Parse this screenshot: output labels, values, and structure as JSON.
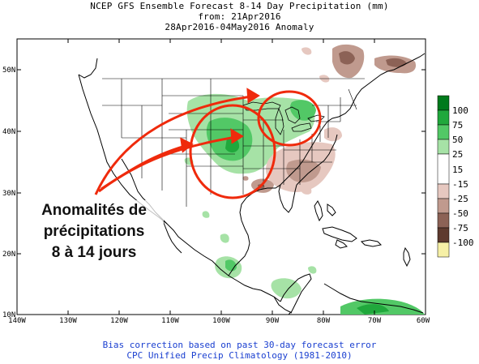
{
  "title": {
    "line1": "NCEP GFS Ensemble Forecast 8-14 Day Precipitation (mm)",
    "line2": "from: 21Apr2016",
    "line3": "28Apr2016-04May2016 Anomaly"
  },
  "axes": {
    "lat_labels": [
      "50N",
      "40N",
      "30N",
      "20N",
      "10N"
    ],
    "lon_labels": [
      "140W",
      "130W",
      "120W",
      "110W",
      "100W",
      "90W",
      "80W",
      "70W",
      "60W"
    ]
  },
  "legend": {
    "levels": [
      "100",
      "75",
      "50",
      "25",
      "15",
      "-15",
      "-25",
      "-50",
      "-75",
      "-100"
    ],
    "colors": [
      "#007a1c",
      "#20a83c",
      "#52c866",
      "#a6e2a6",
      "#ffffff",
      "#e6c8c0",
      "#c09a8e",
      "#8c6256",
      "#5e3a2e",
      "#f6f0a6"
    ]
  },
  "annotation": {
    "line1": "Anomalités de",
    "line2": "précipitations",
    "line3": "8 à 14 jours",
    "color": "#ef2a0c"
  },
  "footer": {
    "line1": "Bias correction based on past 30-day forecast error",
    "line2": "CPC Unified Precip Climatology (1981-2010)"
  },
  "colors": {
    "wet": "#a6e2a6",
    "wet_strong": "#52c866",
    "wet_max": "#20a83c",
    "dry": "#e6c8c0",
    "dry_strong": "#c09a8e",
    "dry_max": "#8c6256",
    "footer_text": "#1a3fd0"
  }
}
